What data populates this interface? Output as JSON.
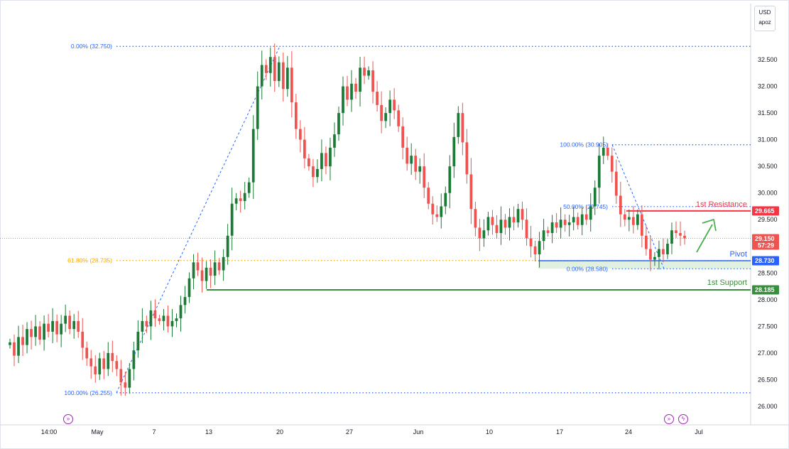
{
  "chart_data": {
    "type": "candlestick",
    "price_axis": {
      "min": 25.6,
      "max": 32.95,
      "ticks": [
        "32.500",
        "32.000",
        "31.500",
        "31.000",
        "30.500",
        "30.000",
        "29.500",
        "29.000",
        "28.500",
        "28.000",
        "27.500",
        "27.000",
        "26.500",
        "26.000"
      ]
    },
    "time_axis": {
      "ticks": [
        "14:00",
        "May",
        "7",
        "13",
        "20",
        "27",
        "Jun",
        "10",
        "17",
        "24",
        "Jul"
      ]
    },
    "currency": "USD",
    "scale_mode": "apoz",
    "colors": {
      "up": "#26a69a",
      "upDark": "#1b7a36",
      "down": "#ef5350",
      "resistance": "#f23645",
      "pivot": "#2962ff",
      "support": "#388e3c",
      "fibBlue": "#2962ff",
      "fibOrange": "#f7a600",
      "current": "#ef5350"
    },
    "levels": [
      {
        "name": "1st Resistance",
        "value": "29.665"
      },
      {
        "name": "Pivot",
        "value": "28.730"
      },
      {
        "name": "1st Support",
        "value": "28.185"
      }
    ],
    "current_price": {
      "value": "29.150",
      "countdown": "57:29"
    },
    "fib_large": [
      {
        "label": "0.00% (32.750)",
        "price": 32.75
      },
      {
        "label": "61.80% (28.735)",
        "price": 28.735
      },
      {
        "label": "100.00% (26.255)",
        "price": 26.255
      }
    ],
    "fib_small": [
      {
        "label": "100.00% (30.905)",
        "price": 30.905
      },
      {
        "label": "50.00% (29.745)",
        "price": 29.745
      },
      {
        "label": "0.00% (28.580)",
        "price": 28.58
      }
    ],
    "closes": [
      27.2,
      26.95,
      27.3,
      27.15,
      27.45,
      27.3,
      27.5,
      27.25,
      27.55,
      27.4,
      27.6,
      27.35,
      27.55,
      27.7,
      27.45,
      27.6,
      27.4,
      27.1,
      26.9,
      26.75,
      26.6,
      26.9,
      26.7,
      27.0,
      26.85,
      26.7,
      26.45,
      26.35,
      26.7,
      27.05,
      27.4,
      27.6,
      27.5,
      27.8,
      27.65,
      27.6,
      27.7,
      27.5,
      27.6,
      27.65,
      27.9,
      28.05,
      28.4,
      28.7,
      28.55,
      28.35,
      28.6,
      28.45,
      28.7,
      28.55,
      28.8,
      29.2,
      29.8,
      29.9,
      29.85,
      30.0,
      30.2,
      31.2,
      32.0,
      32.4,
      32.25,
      32.55,
      32.1,
      32.45,
      31.95,
      32.35,
      31.7,
      31.2,
      31.0,
      30.65,
      30.5,
      30.3,
      30.45,
      30.75,
      30.5,
      30.85,
      31.1,
      31.5,
      32.0,
      31.75,
      32.05,
      31.9,
      32.35,
      32.2,
      32.3,
      31.9,
      31.65,
      31.35,
      31.5,
      31.75,
      31.55,
      31.25,
      30.85,
      30.55,
      30.7,
      30.4,
      30.5,
      30.1,
      29.8,
      29.6,
      29.55,
      29.75,
      30.0,
      30.5,
      31.05,
      31.5,
      30.95,
      30.35,
      29.7,
      29.35,
      29.15,
      29.3,
      29.55,
      29.4,
      29.25,
      29.5,
      29.35,
      29.55,
      29.45,
      29.7,
      29.5,
      29.15,
      29.0,
      28.85,
      29.1,
      29.3,
      29.25,
      29.45,
      29.35,
      29.5,
      29.4,
      29.45,
      29.55,
      29.4,
      29.6,
      29.5,
      29.75,
      30.1,
      30.7,
      30.85,
      30.7,
      30.4,
      29.95,
      29.6,
      29.5,
      29.55,
      29.4,
      29.6,
      29.2,
      28.95,
      28.75,
      28.8,
      28.95,
      28.85,
      29.05,
      29.3,
      29.25,
      29.2,
      29.15
    ]
  }
}
